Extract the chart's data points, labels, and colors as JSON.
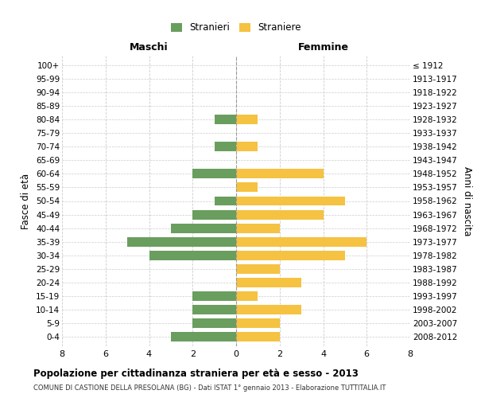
{
  "age_groups": [
    "0-4",
    "5-9",
    "10-14",
    "15-19",
    "20-24",
    "25-29",
    "30-34",
    "35-39",
    "40-44",
    "45-49",
    "50-54",
    "55-59",
    "60-64",
    "65-69",
    "70-74",
    "75-79",
    "80-84",
    "85-89",
    "90-94",
    "95-99",
    "100+"
  ],
  "birth_years": [
    "2008-2012",
    "2003-2007",
    "1998-2002",
    "1993-1997",
    "1988-1992",
    "1983-1987",
    "1978-1982",
    "1973-1977",
    "1968-1972",
    "1963-1967",
    "1958-1962",
    "1953-1957",
    "1948-1952",
    "1943-1947",
    "1938-1942",
    "1933-1937",
    "1928-1932",
    "1923-1927",
    "1918-1922",
    "1913-1917",
    "≤ 1912"
  ],
  "maschi": [
    3,
    2,
    2,
    2,
    0,
    0,
    4,
    5,
    3,
    2,
    1,
    0,
    2,
    0,
    1,
    0,
    1,
    0,
    0,
    0,
    0
  ],
  "femmine": [
    2,
    2,
    3,
    1,
    3,
    2,
    5,
    6,
    2,
    4,
    5,
    1,
    4,
    0,
    1,
    0,
    1,
    0,
    0,
    0,
    0
  ],
  "color_maschi": "#6a9e5e",
  "color_femmine": "#f5c242",
  "title": "Popolazione per cittadinanza straniera per età e sesso - 2013",
  "subtitle": "COMUNE DI CASTIONE DELLA PRESOLANA (BG) - Dati ISTAT 1° gennaio 2013 - Elaborazione TUTTITALIA.IT",
  "xlabel_left": "Maschi",
  "xlabel_right": "Femmine",
  "ylabel_left": "Fasce di età",
  "ylabel_right": "Anni di nascita",
  "legend_maschi": "Stranieri",
  "legend_femmine": "Straniere",
  "xlim": 8,
  "bg_color": "#ffffff",
  "grid_color": "#cccccc",
  "grid_style": "--",
  "bar_height": 0.7
}
